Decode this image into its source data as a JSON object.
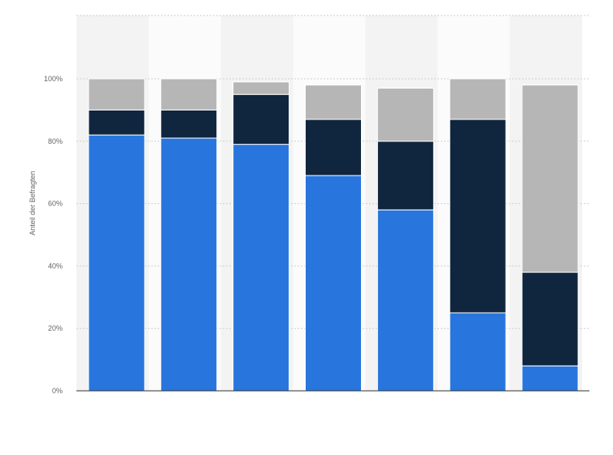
{
  "chart_data": {
    "type": "bar",
    "stacked": true,
    "ylabel": "Anteil der Befragten",
    "ylim": [
      0,
      100
    ],
    "yticks": [
      "0%",
      "20%",
      "40%",
      "60%",
      "80%",
      "100%"
    ],
    "grid": true,
    "categories": [
      "",
      "",
      "",
      "",
      "",
      "",
      ""
    ],
    "series": [
      {
        "color": "#2876dd",
        "values": [
          82,
          81,
          79,
          69,
          58,
          25,
          8
        ]
      },
      {
        "color": "#10253e",
        "values": [
          8,
          9,
          16,
          18,
          22,
          62,
          30
        ]
      },
      {
        "color": "#b6b6b6",
        "values": [
          10,
          10,
          4,
          11,
          17,
          13,
          60
        ]
      }
    ],
    "band_colors": [
      "#f3f3f3",
      "#fbfbfb"
    ]
  }
}
